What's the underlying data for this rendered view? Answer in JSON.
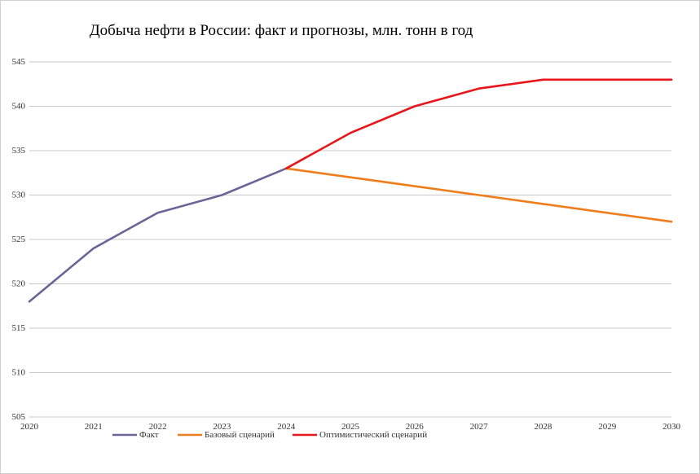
{
  "chart_data": {
    "type": "line",
    "title": "Добыча нефти в России: факт и прогнозы, млн. тонн в год",
    "x": [
      "2020",
      "2021",
      "2022",
      "2023",
      "2024",
      "2025",
      "2026",
      "2027",
      "2028",
      "2029",
      "2030"
    ],
    "ylim": [
      505,
      545
    ],
    "yticks": [
      505,
      510,
      515,
      520,
      525,
      530,
      535,
      540,
      545
    ],
    "grid": true,
    "legend_position": "bottom",
    "series": [
      {
        "name": "Факт",
        "color": "#6a6597",
        "points": [
          [
            2020,
            518
          ],
          [
            2021,
            524
          ],
          [
            2022,
            528
          ],
          [
            2023,
            530
          ],
          [
            2024,
            533
          ]
        ]
      },
      {
        "name": "Базовый сценарий",
        "color": "#f07d1b",
        "points": [
          [
            2024,
            533
          ],
          [
            2025,
            532
          ],
          [
            2026,
            531
          ],
          [
            2027,
            530
          ],
          [
            2028,
            529
          ],
          [
            2029,
            528
          ],
          [
            2030,
            527
          ]
        ]
      },
      {
        "name": "Оптимистический сценарий",
        "color": "#e8161b",
        "points": [
          [
            2024,
            533
          ],
          [
            2025,
            537
          ],
          [
            2026,
            540
          ],
          [
            2027,
            542
          ],
          [
            2028,
            543
          ],
          [
            2029,
            543
          ],
          [
            2030,
            543
          ]
        ]
      }
    ]
  }
}
